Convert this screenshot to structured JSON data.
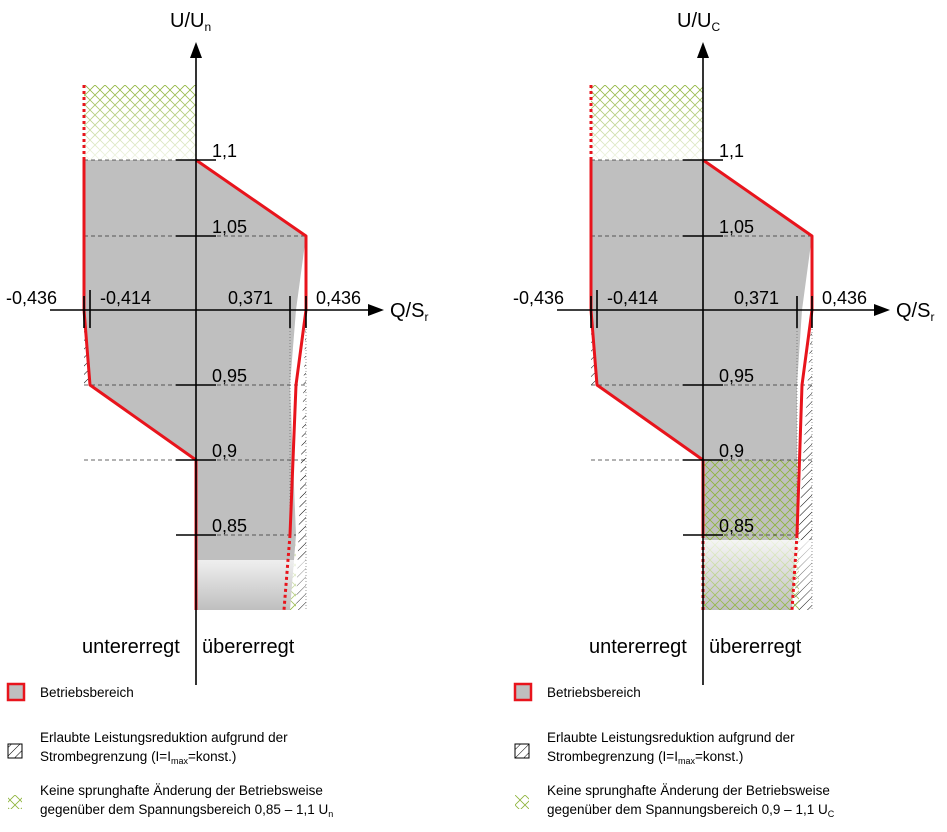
{
  "panels": [
    {
      "y_axis": {
        "base": "U/U",
        "sub": "n"
      },
      "x_axis": {
        "base": "Q/S",
        "sub": "r"
      },
      "y_ticks": [
        "1,1",
        "1,05",
        "0,95",
        "0,9",
        "0,85"
      ],
      "x_ticks": [
        "-0,436",
        "-0,414",
        "0,371",
        "0,436"
      ],
      "regions": {
        "left": "untererregt",
        "right": "übererregt"
      },
      "legend": {
        "operating": "Betriebsbereich",
        "reduction_line1": "Erlaubte Leistungsreduktion aufgrund der",
        "reduction_line2_a": "Strombegrenzung (I=I",
        "reduction_line2_sub": "max",
        "reduction_line2_b": "=konst.)",
        "nojump_line1": "Keine sprunghafte Änderung der Betriebsweise",
        "nojump_line2_a": "gegenüber dem Spannungsbereich 0,85 – 1,1 U",
        "nojump_line2_sub": "n"
      },
      "colors": {
        "operating_fill": "#bfbfbf",
        "boundary": "#e8141c",
        "hatch_green": "#8db33a"
      }
    },
    {
      "y_axis": {
        "base": "U/U",
        "sub": "C"
      },
      "x_axis": {
        "base": "Q/S",
        "sub": "r"
      },
      "y_ticks": [
        "1,1",
        "1,05",
        "0,95",
        "0,9",
        "0,85"
      ],
      "x_ticks": [
        "-0,436",
        "-0,414",
        "0,371",
        "0,436"
      ],
      "regions": {
        "left": "untererregt",
        "right": "übererregt"
      },
      "legend": {
        "operating": "Betriebsbereich",
        "reduction_line1": "Erlaubte Leistungsreduktion aufgrund der",
        "reduction_line2_a": "Strombegrenzung (I=I",
        "reduction_line2_sub": "max",
        "reduction_line2_b": "=konst.)",
        "nojump_line1": "Keine sprunghafte Änderung der Betriebsweise",
        "nojump_line2_a": "gegenüber dem Spannungsbereich 0,9 – 1,1 U",
        "nojump_line2_sub": "C"
      },
      "colors": {
        "operating_fill": "#bfbfbf",
        "boundary": "#e8141c",
        "hatch_green": "#8db33a"
      }
    }
  ]
}
